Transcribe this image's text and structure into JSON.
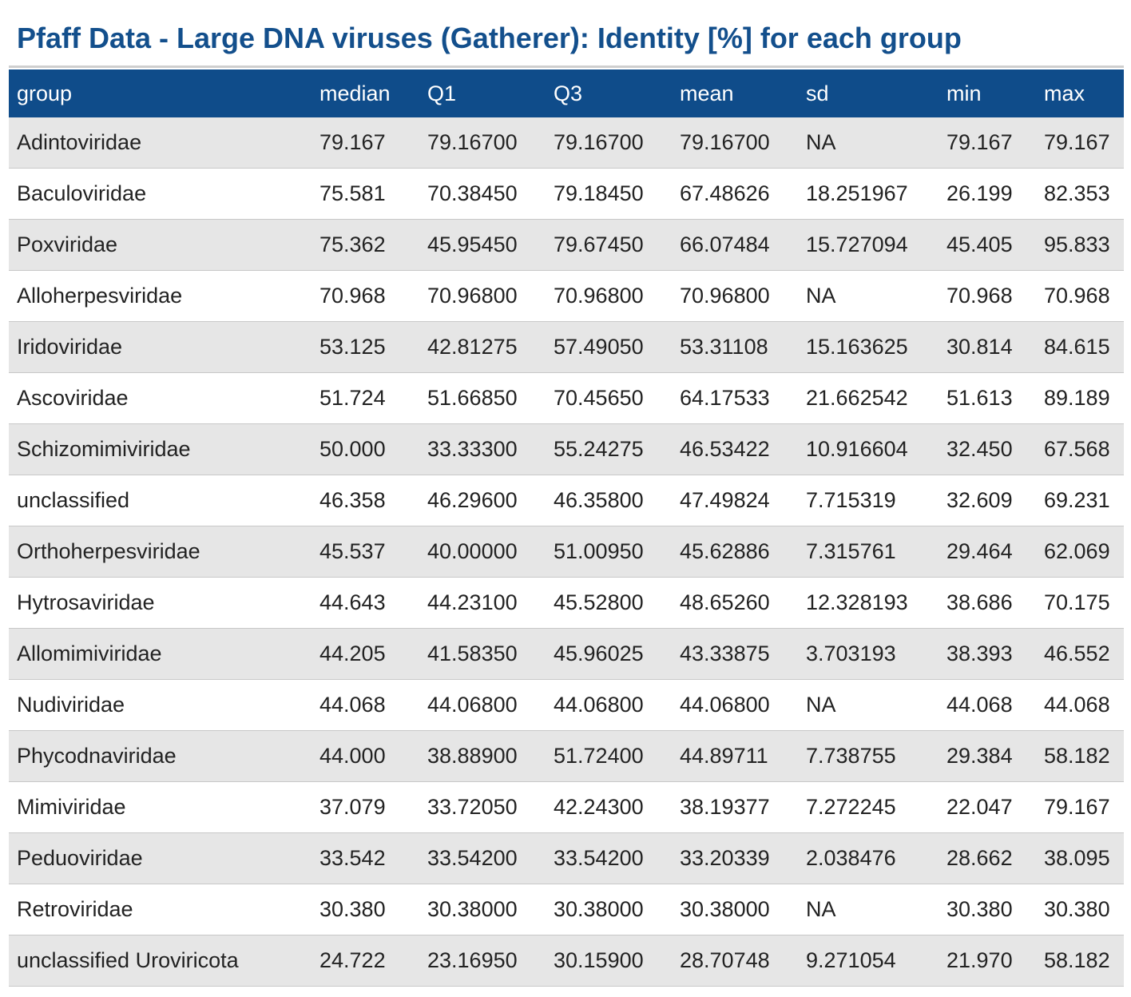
{
  "title": "Pfaff Data - Large DNA viruses (Gatherer): Identity [%] for each group",
  "table": {
    "header": [
      "group",
      "median",
      "Q1",
      "Q3",
      "mean",
      "sd",
      "min",
      "max"
    ],
    "rows": [
      [
        "Adintoviridae",
        "79.167",
        "79.16700",
        "79.16700",
        "79.16700",
        "NA",
        "79.167",
        "79.167"
      ],
      [
        "Baculoviridae",
        "75.581",
        "70.38450",
        "79.18450",
        "67.48626",
        "18.251967",
        "26.199",
        "82.353"
      ],
      [
        "Poxviridae",
        "75.362",
        "45.95450",
        "79.67450",
        "66.07484",
        "15.727094",
        "45.405",
        "95.833"
      ],
      [
        "Alloherpesviridae",
        "70.968",
        "70.96800",
        "70.96800",
        "70.96800",
        "NA",
        "70.968",
        "70.968"
      ],
      [
        "Iridoviridae",
        "53.125",
        "42.81275",
        "57.49050",
        "53.31108",
        "15.163625",
        "30.814",
        "84.615"
      ],
      [
        "Ascoviridae",
        "51.724",
        "51.66850",
        "70.45650",
        "64.17533",
        "21.662542",
        "51.613",
        "89.189"
      ],
      [
        "Schizomimiviridae",
        "50.000",
        "33.33300",
        "55.24275",
        "46.53422",
        "10.916604",
        "32.450",
        "67.568"
      ],
      [
        "unclassified",
        "46.358",
        "46.29600",
        "46.35800",
        "47.49824",
        "7.715319",
        "32.609",
        "69.231"
      ],
      [
        "Orthoherpesviridae",
        "45.537",
        "40.00000",
        "51.00950",
        "45.62886",
        "7.315761",
        "29.464",
        "62.069"
      ],
      [
        "Hytrosaviridae",
        "44.643",
        "44.23100",
        "45.52800",
        "48.65260",
        "12.328193",
        "38.686",
        "70.175"
      ],
      [
        "Allomimiviridae",
        "44.205",
        "41.58350",
        "45.96025",
        "43.33875",
        "3.703193",
        "38.393",
        "46.552"
      ],
      [
        "Nudiviridae",
        "44.068",
        "44.06800",
        "44.06800",
        "44.06800",
        "NA",
        "44.068",
        "44.068"
      ],
      [
        "Phycodnaviridae",
        "44.000",
        "38.88900",
        "51.72400",
        "44.89711",
        "7.738755",
        "29.384",
        "58.182"
      ],
      [
        "Mimiviridae",
        "37.079",
        "33.72050",
        "42.24300",
        "38.19377",
        "7.272245",
        "22.047",
        "79.167"
      ],
      [
        "Peduoviridae",
        "33.542",
        "33.54200",
        "33.54200",
        "33.20339",
        "2.038476",
        "28.662",
        "38.095"
      ],
      [
        "Retroviridae",
        "30.380",
        "30.38000",
        "30.38000",
        "30.38000",
        "NA",
        "30.380",
        "30.380"
      ],
      [
        "unclassified Uroviricota",
        "24.722",
        "23.16950",
        "30.15900",
        "28.70748",
        "9.271054",
        "21.970",
        "58.182"
      ]
    ]
  }
}
